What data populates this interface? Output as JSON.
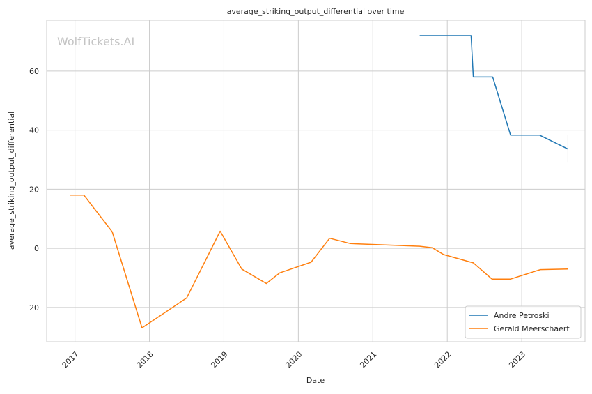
{
  "chart_data": {
    "type": "line",
    "title": "average_striking_output_differential over time",
    "xlabel": "Date",
    "ylabel": "average_striking_output_differential",
    "watermark": "WolfTickets.AI",
    "grid": true,
    "legend_position": "bottom-right",
    "xlim": [
      2016.62,
      2023.85
    ],
    "ylim": [
      -31.6,
      77.2
    ],
    "x_ticks": [
      {
        "value": 2017,
        "label": "2017"
      },
      {
        "value": 2018,
        "label": "2018"
      },
      {
        "value": 2019,
        "label": "2019"
      },
      {
        "value": 2020,
        "label": "2020"
      },
      {
        "value": 2021,
        "label": "2021"
      },
      {
        "value": 2022,
        "label": "2022"
      },
      {
        "value": 2023,
        "label": "2023"
      }
    ],
    "y_ticks": [
      {
        "value": -20,
        "label": "−20"
      },
      {
        "value": 0,
        "label": "0"
      },
      {
        "value": 20,
        "label": "20"
      },
      {
        "value": 40,
        "label": "40"
      },
      {
        "value": 60,
        "label": "60"
      }
    ],
    "series": [
      {
        "name": "Andre Petroski",
        "color": "#1f77b4",
        "x": [
          2021.63,
          2022.32,
          2022.35,
          2022.61,
          2022.85,
          2023.24,
          2023.62
        ],
        "y": [
          72.0,
          72.0,
          58.0,
          58.0,
          38.3,
          38.3,
          33.6
        ]
      },
      {
        "name": "Gerald Meerschaert",
        "color": "#ff7f0e",
        "x": [
          2016.93,
          2017.12,
          2017.5,
          2017.9,
          2018.5,
          2018.95,
          2019.24,
          2019.57,
          2019.75,
          2020.17,
          2020.42,
          2020.7,
          2021.63,
          2021.8,
          2021.95,
          2022.33,
          2022.35,
          2022.6,
          2022.85,
          2023.25,
          2023.62
        ],
        "y": [
          18.0,
          18.0,
          5.6,
          -26.9,
          -16.8,
          5.8,
          -7.0,
          -11.9,
          -8.3,
          -4.7,
          3.4,
          1.6,
          0.7,
          0.2,
          -2.1,
          -4.8,
          -4.9,
          -10.4,
          -10.4,
          -7.2,
          -7.0
        ]
      }
    ],
    "error_bar": {
      "x": 2023.62,
      "y_low": 29.0,
      "y_high": 38.3,
      "color": "#c0c0c0"
    }
  }
}
